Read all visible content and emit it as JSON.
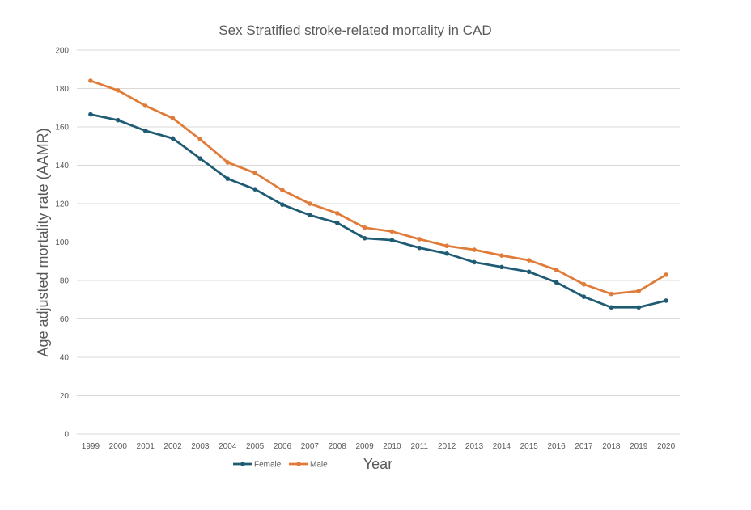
{
  "chart_data": {
    "type": "line",
    "title": "Sex Stratified stroke-related mortality in CAD",
    "xlabel": "Year",
    "ylabel": "Age adjusted mortality rate (AAMR)",
    "ylim": [
      0,
      200
    ],
    "yticks": [
      "0",
      "20",
      "40",
      "60",
      "80",
      "100",
      "120",
      "140",
      "160",
      "180",
      "200"
    ],
    "grid": true,
    "legend_position": "bottom-left",
    "categories": [
      "1999",
      "2000",
      "2001",
      "2002",
      "2003",
      "2004",
      "2005",
      "2006",
      "2007",
      "2008",
      "2009",
      "2010",
      "2011",
      "2012",
      "2013",
      "2014",
      "2015",
      "2016",
      "2017",
      "2018",
      "2019",
      "2020"
    ],
    "series": [
      {
        "name": "Female",
        "color": "#1f5c74",
        "values": [
          166.5,
          163.5,
          158.0,
          154.0,
          143.5,
          133.0,
          127.5,
          119.5,
          114.0,
          110.0,
          102.0,
          101.0,
          97.0,
          94.0,
          89.5,
          87.0,
          84.5,
          79.0,
          71.5,
          66.0,
          66.0,
          69.5
        ]
      },
      {
        "name": "Male",
        "color": "#e07b39",
        "values": [
          184.0,
          179.0,
          171.0,
          164.5,
          153.5,
          141.5,
          136.0,
          127.0,
          120.0,
          115.0,
          107.5,
          105.5,
          101.5,
          98.0,
          96.0,
          93.0,
          90.5,
          85.5,
          78.0,
          73.0,
          74.5,
          83.0
        ]
      }
    ]
  }
}
